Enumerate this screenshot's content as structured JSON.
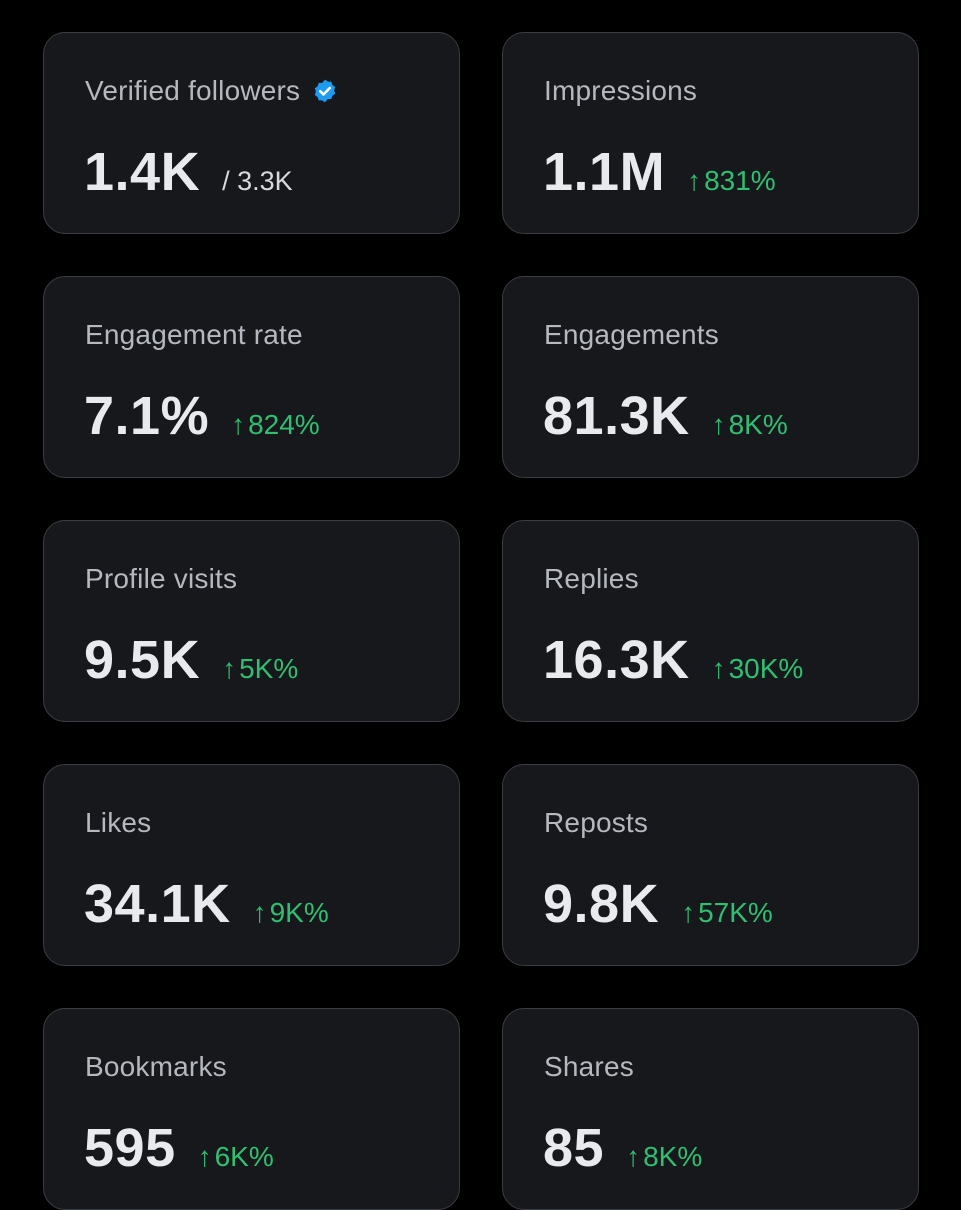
{
  "colors": {
    "background": "#000000",
    "card": "#17181c",
    "card_border": "#3a3d42",
    "label": "#b5b9bf",
    "value": "#e8eaed",
    "positive": "#2fbf71",
    "verified": "#1d9bf0"
  },
  "metrics": [
    {
      "label": "Verified followers",
      "value": "1.4K",
      "total": "/ 3.3K",
      "icon": "verified-badge-icon"
    },
    {
      "label": "Impressions",
      "value": "1.1M",
      "arrow": "↑",
      "change": "831%"
    },
    {
      "label": "Engagement rate",
      "value": "7.1%",
      "arrow": "↑",
      "change": "824%"
    },
    {
      "label": "Engagements",
      "value": "81.3K",
      "arrow": "↑",
      "change": "8K%"
    },
    {
      "label": "Profile visits",
      "value": "9.5K",
      "arrow": "↑",
      "change": "5K%"
    },
    {
      "label": "Replies",
      "value": "16.3K",
      "arrow": "↑",
      "change": "30K%"
    },
    {
      "label": "Likes",
      "value": "34.1K",
      "arrow": "↑",
      "change": "9K%"
    },
    {
      "label": "Reposts",
      "value": "9.8K",
      "arrow": "↑",
      "change": "57K%"
    },
    {
      "label": "Bookmarks",
      "value": "595",
      "arrow": "↑",
      "change": "6K%"
    },
    {
      "label": "Shares",
      "value": "85",
      "arrow": "↑",
      "change": "8K%"
    }
  ]
}
